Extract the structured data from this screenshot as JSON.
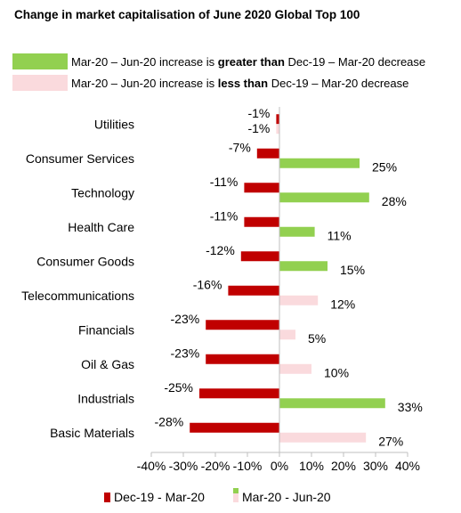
{
  "chart_data": {
    "type": "bar",
    "title": "Change in market capitalisation of June 2020 Global Top 100",
    "orientation": "horizontal",
    "categories": [
      "Utilities",
      "Consumer Services",
      "Technology",
      "Health Care",
      "Consumer Goods",
      "Telecommunications",
      "Financials",
      "Oil & Gas",
      "Industrials",
      "Basic Materials"
    ],
    "series": [
      {
        "name": "Dec-19 - Mar-20",
        "values": [
          -1,
          -7,
          -11,
          -11,
          -12,
          -16,
          -23,
          -23,
          -25,
          -28
        ],
        "labels": [
          "-1%",
          "-7%",
          "-11%",
          "-11%",
          "-12%",
          "-16%",
          "-23%",
          "-23%",
          "-25%",
          "-28%"
        ],
        "color": "#c00000"
      },
      {
        "name": "Mar-20 - Jun-20",
        "values": [
          -1,
          25,
          28,
          11,
          15,
          12,
          5,
          10,
          33,
          27
        ],
        "labels": [
          "-1%",
          "25%",
          "28%",
          "11%",
          "15%",
          "12%",
          "5%",
          "10%",
          "33%",
          "27%"
        ],
        "greater": [
          false,
          true,
          true,
          true,
          true,
          false,
          false,
          false,
          true,
          false
        ]
      }
    ],
    "xlim": [
      -40,
      40
    ],
    "xticks": [
      -40,
      -30,
      -20,
      -10,
      0,
      10,
      20,
      30,
      40
    ],
    "xtick_labels": [
      "-40%",
      "-30%",
      "-20%",
      "-10%",
      "0%",
      "10%",
      "20%",
      "30%",
      "40%"
    ],
    "grid": false,
    "legend_position": "bottom",
    "colors": {
      "decline": "#c00000",
      "greater": "#92d050",
      "less": "#fadadd"
    }
  },
  "notes": {
    "greater": {
      "pre": "Mar-20 – Jun-20 increase is ",
      "bold": "greater than",
      "post": " Dec-19 – Mar-20 decrease"
    },
    "less": {
      "pre": "Mar-20 – Jun-20 increase is ",
      "bold": "less than",
      "post": " Dec-19 – Mar-20 decrease"
    }
  }
}
